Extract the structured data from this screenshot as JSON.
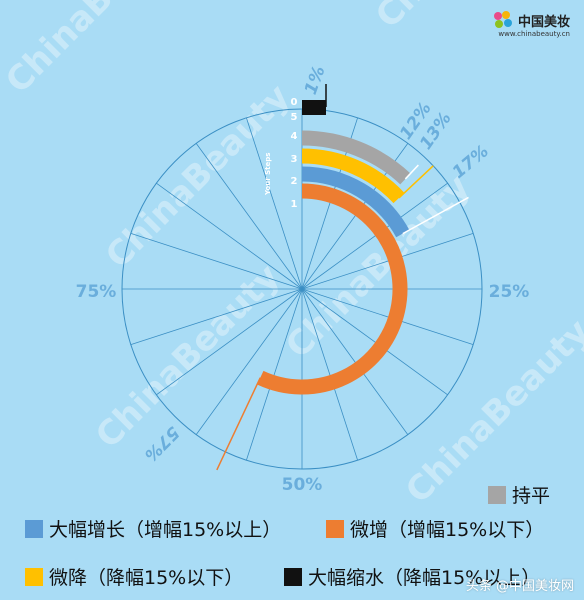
{
  "brand": {
    "name": "中国美妆",
    "url": "www.chinabeauty.cn",
    "watermark": "ChinaBeauty",
    "watermark_cn": "中国美妆"
  },
  "colors": {
    "background": "#a9dcf5",
    "grid": "#3b8fc4",
    "blue": "#5b9bd5",
    "orange": "#ed7d31",
    "yellow": "#ffc000",
    "gray": "#a5a5a5",
    "black": "#111111",
    "label": "#6aaedc"
  },
  "chart_data": {
    "type": "radial-bar",
    "axis_title": "Your Steps",
    "ring_numbers": [
      "0",
      "1",
      "2",
      "3",
      "4",
      "5"
    ],
    "percent_axis": [
      "25%",
      "50%",
      "75%"
    ],
    "series": [
      {
        "name": "大幅缩水（降幅15%以上）",
        "value": 1,
        "label": "1%",
        "color": "#111111"
      },
      {
        "name": "持平",
        "value": 12,
        "label": "12%",
        "color": "#a5a5a5"
      },
      {
        "name": "微降（降幅15%以下）",
        "value": 13,
        "label": "13%",
        "color": "#ffc000"
      },
      {
        "name": "大幅增长（增幅15%以上）",
        "value": 17,
        "label": "17%",
        "color": "#5b9bd5"
      },
      {
        "name": "微增（增幅15%以下）",
        "value": 57,
        "label": "57%",
        "color": "#ed7d31"
      }
    ]
  },
  "legend": {
    "gray": "持平",
    "blue": "大幅增长（增幅15%以上）",
    "orange": "微增（增幅15%以下）",
    "yellow": "微降（降幅15%以下）",
    "black": "大幅缩水（降幅15%以上）"
  },
  "corner_watermark": "头条 @中国美妆网"
}
